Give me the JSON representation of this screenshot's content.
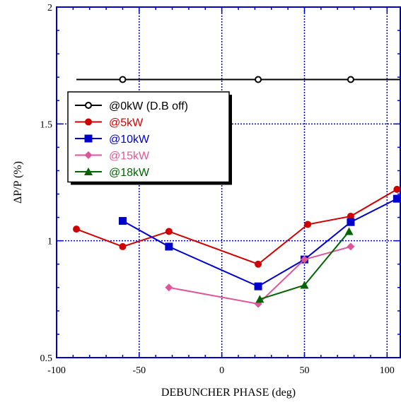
{
  "chart_data": {
    "type": "line",
    "title": "",
    "xlabel": "DEBUNCHER PHASE (deg)",
    "ylabel": "ΔP/P (%)",
    "xlim": [
      -100,
      108
    ],
    "ylim": [
      0.5,
      2
    ],
    "xticks": [
      -100,
      -50,
      0,
      50,
      100
    ],
    "yticks": [
      0.5,
      1,
      1.5,
      2
    ],
    "ytick_labels": [
      "0.5",
      "1",
      "1.5",
      "2"
    ],
    "grid": true,
    "legend_position": "upper-left",
    "series": [
      {
        "name": "@0kW (D.B off)",
        "color": "#000000",
        "marker": "open-circle",
        "x": [
          -88,
          -60,
          22,
          78,
          108
        ],
        "y": [
          1.69,
          1.69,
          1.69,
          1.69,
          1.69
        ],
        "marker_x": [
          -60,
          22,
          78
        ]
      },
      {
        "name": "@5kW",
        "color": "#d00000",
        "marker": "circle",
        "x": [
          -88,
          -60,
          -32,
          22,
          52,
          78,
          106
        ],
        "y": [
          1.05,
          0.975,
          1.04,
          0.9,
          1.07,
          1.105,
          1.22
        ]
      },
      {
        "name": "@10kW",
        "color": "#0000cc",
        "marker": "square",
        "x": [
          -60,
          -32,
          22,
          50,
          78,
          106
        ],
        "y": [
          1.085,
          0.975,
          0.805,
          0.92,
          1.08,
          1.18
        ]
      },
      {
        "name": "@15kW",
        "color": "#e0559a",
        "marker": "diamond",
        "x": [
          -32,
          22,
          50,
          78
        ],
        "y": [
          0.8,
          0.73,
          0.92,
          0.975
        ]
      },
      {
        "name": "@18kW",
        "color": "#006400",
        "marker": "triangle",
        "x": [
          23,
          50,
          77
        ],
        "y": [
          0.75,
          0.81,
          1.04
        ]
      }
    ]
  }
}
